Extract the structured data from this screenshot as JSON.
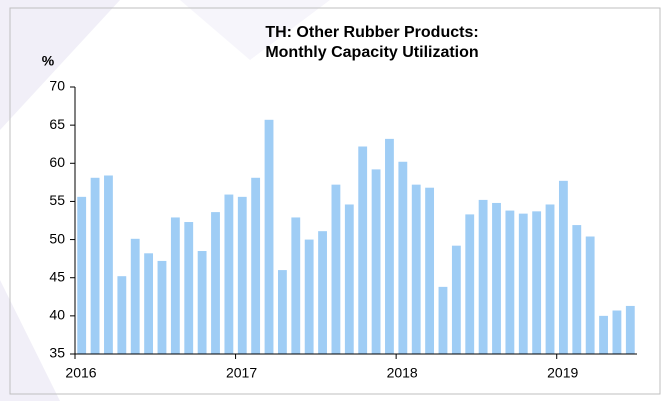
{
  "chart_data": {
    "type": "bar",
    "title_lines": [
      "TH: Other Rubber Products:",
      "Monthly Capacity Utilization"
    ],
    "y_label": "%",
    "categories": [
      "2016",
      null,
      null,
      null,
      null,
      null,
      null,
      null,
      null,
      null,
      null,
      null,
      "2017",
      null,
      null,
      null,
      null,
      null,
      null,
      null,
      null,
      null,
      null,
      null,
      "2018",
      null,
      null,
      null,
      null,
      null,
      null,
      null,
      null,
      null,
      null,
      null,
      "2019",
      null,
      null,
      null,
      null,
      null
    ],
    "values": [
      55.6,
      58.1,
      58.4,
      45.2,
      50.1,
      48.2,
      47.2,
      52.9,
      52.3,
      48.5,
      53.6,
      55.9,
      55.6,
      58.1,
      65.7,
      46.0,
      52.9,
      50.0,
      51.1,
      57.2,
      54.6,
      62.2,
      59.2,
      63.2,
      60.2,
      57.2,
      56.8,
      43.8,
      49.2,
      53.3,
      55.2,
      54.8,
      53.8,
      53.4,
      53.7,
      54.6,
      57.7,
      51.9,
      50.4,
      40.0,
      40.7,
      41.3
    ],
    "color": "#9fcdf5",
    "ylim": [
      35,
      70
    ],
    "yticks": [
      35,
      40,
      45,
      50,
      55,
      60,
      65,
      70
    ],
    "grid": false
  }
}
